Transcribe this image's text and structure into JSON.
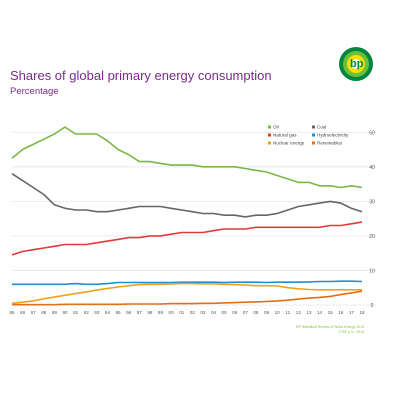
{
  "header": {
    "title": "Shares of global primary energy consumption",
    "subtitle": "Percentage"
  },
  "brand": {
    "logo_text": "bp",
    "logo_colors": [
      "#00853f",
      "#6cbf3a",
      "#f5e000",
      "#ffffff"
    ]
  },
  "footnotes": {
    "line1": "BP Statistical Review of World Energy 2019",
    "line2": "© BP p.l.c. 2019"
  },
  "chart_data": {
    "type": "line",
    "x": [
      "85",
      "86",
      "87",
      "88",
      "89",
      "90",
      "91",
      "92",
      "93",
      "94",
      "95",
      "96",
      "97",
      "98",
      "99",
      "00",
      "01",
      "02",
      "03",
      "04",
      "05",
      "06",
      "07",
      "08",
      "09",
      "10",
      "11",
      "12",
      "13",
      "14",
      "15",
      "16",
      "17",
      "18"
    ],
    "ylim": [
      0,
      55
    ],
    "y_ticks": [
      "0",
      "10",
      "20",
      "30",
      "40",
      "50"
    ],
    "grid": true,
    "legend_position": "top-right",
    "series": [
      {
        "name": "Oil",
        "color": "#7ab648",
        "values": [
          42.5,
          45,
          46.5,
          48,
          49.5,
          51.5,
          49.5,
          49.5,
          49.5,
          47.5,
          45,
          43.5,
          41.5,
          41.5,
          41,
          40.5,
          40.5,
          40.5,
          40,
          40,
          40,
          40,
          39.5,
          39,
          38.5,
          37.5,
          36.5,
          35.5,
          35.5,
          34.5,
          34.5,
          34,
          34.5,
          34
        ]
      },
      {
        "name": "Coal",
        "color": "#666666",
        "values": [
          38,
          36,
          34,
          32,
          29,
          28,
          27.5,
          27.5,
          27,
          27,
          27.5,
          28,
          28.5,
          28.5,
          28.5,
          28,
          27.5,
          27,
          26.5,
          26.5,
          26,
          26,
          25.5,
          26,
          26,
          26.5,
          27.5,
          28.5,
          29,
          29.5,
          30,
          29.5,
          28,
          27
        ]
      },
      {
        "name": "Natural gas",
        "color": "#e03a3a",
        "values": [
          14.5,
          15.5,
          16,
          16.5,
          17,
          17.5,
          17.5,
          17.5,
          18,
          18.5,
          19,
          19.5,
          19.5,
          20,
          20,
          20.5,
          21,
          21,
          21,
          21.5,
          22,
          22,
          22,
          22.5,
          22.5,
          22.5,
          22.5,
          22.5,
          22.5,
          22.5,
          23,
          23,
          23.5,
          24
        ]
      },
      {
        "name": "Hydroelectricity",
        "color": "#1e8fd0",
        "values": [
          6,
          6,
          6,
          6,
          6,
          6,
          6.2,
          6,
          6,
          6.2,
          6.5,
          6.5,
          6.5,
          6.5,
          6.5,
          6.5,
          6.6,
          6.6,
          6.6,
          6.6,
          6.5,
          6.6,
          6.6,
          6.6,
          6.5,
          6.6,
          6.6,
          6.6,
          6.7,
          6.8,
          6.8,
          6.9,
          6.9,
          6.8
        ]
      },
      {
        "name": "Nuclear energy",
        "color": "#f0a020",
        "values": [
          0.5,
          0.8,
          1.2,
          1.8,
          2.3,
          2.8,
          3.3,
          3.8,
          4.3,
          4.8,
          5.2,
          5.6,
          5.9,
          6,
          6,
          6.1,
          6.2,
          6.2,
          6.1,
          6.1,
          6,
          5.9,
          5.8,
          5.6,
          5.6,
          5.5,
          5,
          4.7,
          4.5,
          4.4,
          4.4,
          4.4,
          4.4,
          4.4
        ]
      },
      {
        "name": "Renewables",
        "color": "#e0701a",
        "values": [
          0.1,
          0.1,
          0.1,
          0.1,
          0.1,
          0.2,
          0.2,
          0.2,
          0.2,
          0.2,
          0.2,
          0.3,
          0.3,
          0.3,
          0.3,
          0.4,
          0.4,
          0.4,
          0.5,
          0.5,
          0.6,
          0.7,
          0.8,
          0.9,
          1,
          1.2,
          1.4,
          1.7,
          2,
          2.2,
          2.5,
          3,
          3.5,
          4
        ]
      }
    ]
  }
}
